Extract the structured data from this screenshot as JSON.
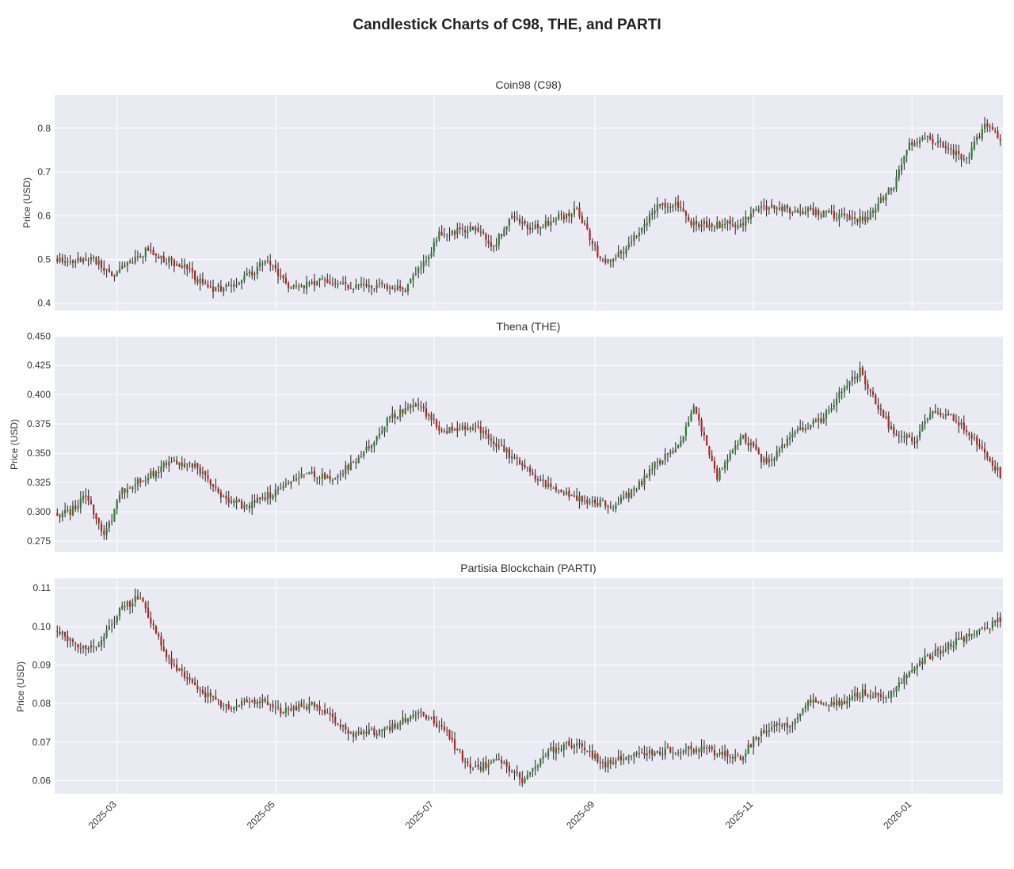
{
  "figure_title": "Candlestick Charts of C98, THE, and PARTI",
  "colors": {
    "up": "#2f7d32",
    "down": "#b3261e",
    "wick": "#222222",
    "panel_bg": "#eaeaf2"
  },
  "chart_data": [
    {
      "type": "candlestick",
      "title": "Coin98 (C98)",
      "ylabel": "Price (USD)",
      "xlabel": "",
      "x_range": [
        "2025-02-05",
        "2026-02-05"
      ],
      "x_ticks": [
        "2025-03",
        "2025-05",
        "2025-07",
        "2025-09",
        "2025-11",
        "2026-01"
      ],
      "ylim": [
        0.383,
        0.876
      ],
      "y_ticks": [
        0.4,
        0.5,
        0.6,
        0.7,
        0.8
      ],
      "y_tick_labels": [
        "0.4",
        "0.5",
        "0.6",
        "0.7",
        "0.8"
      ],
      "grid": true,
      "close_path": [
        [
          "2025-02-06",
          0.5
        ],
        [
          "2025-02-20",
          0.5
        ],
        [
          "2025-02-27",
          0.46
        ],
        [
          "2025-03-12",
          0.52
        ],
        [
          "2025-03-27",
          0.48
        ],
        [
          "2025-04-06",
          0.43
        ],
        [
          "2025-04-16",
          0.44
        ],
        [
          "2025-04-28",
          0.5
        ],
        [
          "2025-05-07",
          0.43
        ],
        [
          "2025-05-18",
          0.45
        ],
        [
          "2025-05-31",
          0.44
        ],
        [
          "2025-06-14",
          0.44
        ],
        [
          "2025-06-20",
          0.43
        ],
        [
          "2025-06-28",
          0.5
        ],
        [
          "2025-07-03",
          0.56
        ],
        [
          "2025-07-18",
          0.57
        ],
        [
          "2025-07-24",
          0.53
        ],
        [
          "2025-07-31",
          0.6
        ],
        [
          "2025-08-07",
          0.57
        ],
        [
          "2025-08-20",
          0.6
        ],
        [
          "2025-08-25",
          0.61
        ],
        [
          "2025-09-04",
          0.49
        ],
        [
          "2025-09-12",
          0.52
        ],
        [
          "2025-09-26",
          0.63
        ],
        [
          "2025-10-03",
          0.62
        ],
        [
          "2025-10-08",
          0.58
        ],
        [
          "2025-10-17",
          0.58
        ],
        [
          "2025-10-27",
          0.58
        ],
        [
          "2025-11-03",
          0.62
        ],
        [
          "2025-11-22",
          0.61
        ],
        [
          "2025-12-04",
          0.6
        ],
        [
          "2025-12-14",
          0.59
        ],
        [
          "2025-12-25",
          0.67
        ],
        [
          "2025-12-31",
          0.76
        ],
        [
          "2026-01-06",
          0.78
        ],
        [
          "2026-01-13",
          0.76
        ],
        [
          "2026-01-22",
          0.73
        ],
        [
          "2026-01-29",
          0.81
        ],
        [
          "2026-02-04",
          0.78
        ]
      ]
    },
    {
      "type": "candlestick",
      "title": "Thena (THE)",
      "ylabel": "Price (USD)",
      "xlabel": "",
      "x_range": [
        "2025-02-05",
        "2026-02-05"
      ],
      "x_ticks": [
        "2025-03",
        "2025-05",
        "2025-07",
        "2025-09",
        "2025-11",
        "2026-01"
      ],
      "ylim": [
        0.2655,
        0.4495
      ],
      "y_ticks": [
        0.275,
        0.3,
        0.325,
        0.35,
        0.375,
        0.4,
        0.425,
        0.45
      ],
      "y_tick_labels": [
        "0.275",
        "0.300",
        "0.325",
        "0.350",
        "0.375",
        "0.400",
        "0.425",
        "0.450"
      ],
      "grid": true,
      "close_path": [
        [
          "2025-02-06",
          0.298
        ],
        [
          "2025-02-11",
          0.3
        ],
        [
          "2025-02-17",
          0.315
        ],
        [
          "2025-02-24",
          0.278
        ],
        [
          "2025-03-03",
          0.318
        ],
        [
          "2025-03-13",
          0.33
        ],
        [
          "2025-03-21",
          0.343
        ],
        [
          "2025-03-31",
          0.338
        ],
        [
          "2025-04-10",
          0.315
        ],
        [
          "2025-04-19",
          0.303
        ],
        [
          "2025-04-29",
          0.315
        ],
        [
          "2025-05-12",
          0.333
        ],
        [
          "2025-05-24",
          0.33
        ],
        [
          "2025-06-03",
          0.347
        ],
        [
          "2025-06-14",
          0.38
        ],
        [
          "2025-06-24",
          0.392
        ],
        [
          "2025-07-04",
          0.37
        ],
        [
          "2025-07-17",
          0.372
        ],
        [
          "2025-07-27",
          0.355
        ],
        [
          "2025-08-09",
          0.33
        ],
        [
          "2025-08-15",
          0.32
        ],
        [
          "2025-08-27",
          0.31
        ],
        [
          "2025-09-08",
          0.305
        ],
        [
          "2025-09-17",
          0.32
        ],
        [
          "2025-09-24",
          0.34
        ],
        [
          "2025-10-03",
          0.355
        ],
        [
          "2025-10-09",
          0.39
        ],
        [
          "2025-10-18",
          0.33
        ],
        [
          "2025-10-28",
          0.365
        ],
        [
          "2025-11-06",
          0.34
        ],
        [
          "2025-11-17",
          0.368
        ],
        [
          "2025-11-28",
          0.38
        ],
        [
          "2025-12-07",
          0.41
        ],
        [
          "2025-12-12",
          0.42
        ],
        [
          "2025-12-24",
          0.37
        ],
        [
          "2026-01-02",
          0.36
        ],
        [
          "2026-01-08",
          0.385
        ],
        [
          "2026-01-17",
          0.38
        ],
        [
          "2026-01-24",
          0.365
        ],
        [
          "2026-02-04",
          0.332
        ]
      ]
    },
    {
      "type": "candlestick",
      "title": "Partisia Blockchain (PARTI)",
      "ylabel": "Price (USD)",
      "xlabel": "",
      "x_range": [
        "2025-02-05",
        "2026-02-05"
      ],
      "x_ticks": [
        "2025-03",
        "2025-05",
        "2025-07",
        "2025-09",
        "2025-11",
        "2026-01"
      ],
      "x_tick_labels": [
        "2025-03",
        "2025-05",
        "2025-07",
        "2025-09",
        "2025-11",
        "2026-01"
      ],
      "ylim": [
        0.0566,
        0.1125
      ],
      "y_ticks": [
        0.06,
        0.07,
        0.08,
        0.09,
        0.1,
        0.11
      ],
      "y_tick_labels": [
        "0.06",
        "0.07",
        "0.08",
        "0.09",
        "0.10",
        "0.11"
      ],
      "grid": true,
      "close_path": [
        [
          "2025-02-06",
          0.099
        ],
        [
          "2025-02-13",
          0.095
        ],
        [
          "2025-02-21",
          0.094
        ],
        [
          "2025-03-02",
          0.104
        ],
        [
          "2025-03-10",
          0.108
        ],
        [
          "2025-03-20",
          0.092
        ],
        [
          "2025-03-31",
          0.084
        ],
        [
          "2025-04-13",
          0.079
        ],
        [
          "2025-04-24",
          0.081
        ],
        [
          "2025-05-03",
          0.078
        ],
        [
          "2025-05-16",
          0.08
        ],
        [
          "2025-05-31",
          0.072
        ],
        [
          "2025-06-12",
          0.073
        ],
        [
          "2025-06-26",
          0.078
        ],
        [
          "2025-07-04",
          0.074
        ],
        [
          "2025-07-15",
          0.063
        ],
        [
          "2025-07-26",
          0.065
        ],
        [
          "2025-08-04",
          0.06
        ],
        [
          "2025-08-15",
          0.068
        ],
        [
          "2025-08-26",
          0.07
        ],
        [
          "2025-09-04",
          0.064
        ],
        [
          "2025-09-12",
          0.066
        ],
        [
          "2025-09-21",
          0.067
        ],
        [
          "2025-10-01",
          0.068
        ],
        [
          "2025-10-13",
          0.068
        ],
        [
          "2025-10-27",
          0.066
        ],
        [
          "2025-11-04",
          0.073
        ],
        [
          "2025-11-16",
          0.075
        ],
        [
          "2025-11-22",
          0.081
        ],
        [
          "2025-12-05",
          0.08
        ],
        [
          "2025-12-13",
          0.083
        ],
        [
          "2025-12-23",
          0.082
        ],
        [
          "2026-01-02",
          0.09
        ],
        [
          "2026-01-15",
          0.095
        ],
        [
          "2026-01-28",
          0.099
        ],
        [
          "2026-02-04",
          0.102
        ]
      ]
    }
  ]
}
